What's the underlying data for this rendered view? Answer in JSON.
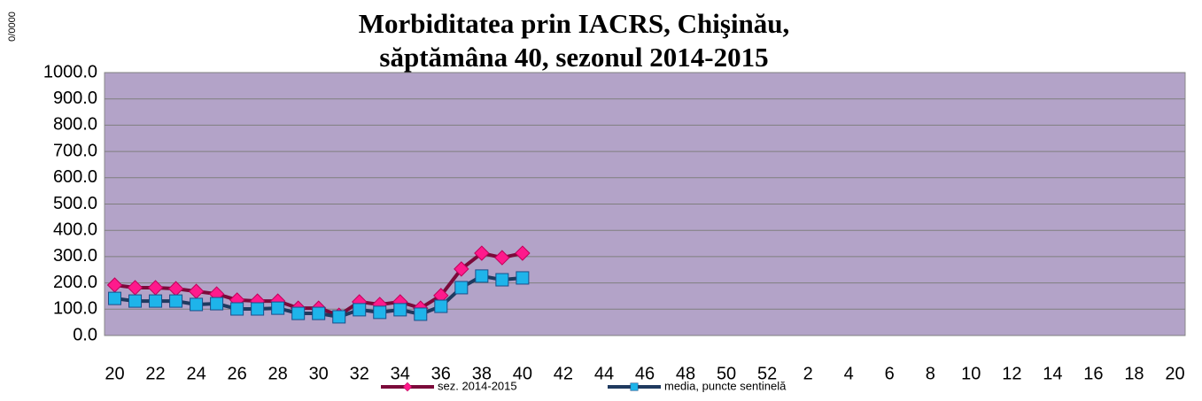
{
  "chart_data": {
    "type": "line",
    "title": [
      "Morbiditatea prin IACRS, Chişinău,",
      "săptămâna 40, sezonul 2014-2015"
    ],
    "y_label": "0/0000",
    "categories": [
      "20",
      null,
      "22",
      null,
      "24",
      null,
      "26",
      null,
      "28",
      null,
      "30",
      null,
      "32",
      null,
      "34",
      null,
      "36",
      null,
      "38",
      null,
      "40",
      null,
      "42",
      null,
      "44",
      null,
      "46",
      null,
      "48",
      null,
      "50",
      null,
      "52",
      null,
      "2",
      null,
      "4",
      null,
      "6",
      null,
      "8",
      null,
      "10",
      null,
      "12",
      null,
      "14",
      null,
      "16",
      null,
      "18",
      null,
      "20"
    ],
    "series": [
      {
        "name": "sez. 2014-2015",
        "color": "#7b0a3a",
        "marker_color": "#ff1a8c",
        "marker": "diamond",
        "values": [
          192,
          182,
          182,
          178,
          168,
          158,
          135,
          131,
          131,
          104,
          104,
          77,
          128,
          118,
          128,
          104,
          152,
          253,
          313,
          296,
          313,
          null,
          null,
          null,
          null,
          null,
          null,
          null,
          null,
          null,
          null,
          null,
          null,
          null,
          null,
          null,
          null,
          null,
          null,
          null,
          null,
          null,
          null,
          null,
          null,
          null,
          null,
          null,
          null,
          null,
          null,
          null,
          null
        ]
      },
      {
        "name": "media, puncte sentinelă",
        "color": "#1f3a5f",
        "marker_color": "#1eb4ea",
        "marker": "square",
        "values": [
          141,
          131,
          131,
          131,
          118,
          121,
          101,
          101,
          104,
          84,
          84,
          71,
          98,
          88,
          98,
          81,
          111,
          182,
          226,
          212,
          219,
          null,
          null,
          null,
          null,
          null,
          null,
          null,
          null,
          null,
          null,
          null,
          null,
          null,
          null,
          null,
          null,
          null,
          null,
          null,
          null,
          null,
          null,
          null,
          null,
          null,
          null,
          null,
          null,
          null,
          null,
          null,
          null
        ]
      }
    ],
    "ylim": [
      0,
      1000
    ],
    "yticks": [
      {
        "value": 0,
        "label": "0.0"
      },
      {
        "value": 100,
        "label": "100.0"
      },
      {
        "value": 200,
        "label": "200.0"
      },
      {
        "value": 300,
        "label": "300.0"
      },
      {
        "value": 400,
        "label": "400.0"
      },
      {
        "value": 500,
        "label": "500.0"
      },
      {
        "value": 600,
        "label": "600.0"
      },
      {
        "value": 700,
        "label": "700.0"
      },
      {
        "value": 800,
        "label": "800.0"
      },
      {
        "value": 900,
        "label": "900.0"
      },
      {
        "value": 1000,
        "label": "1000.0"
      }
    ],
    "grid": true,
    "plot_background": "#b3a3c8",
    "legend": "bottom"
  }
}
